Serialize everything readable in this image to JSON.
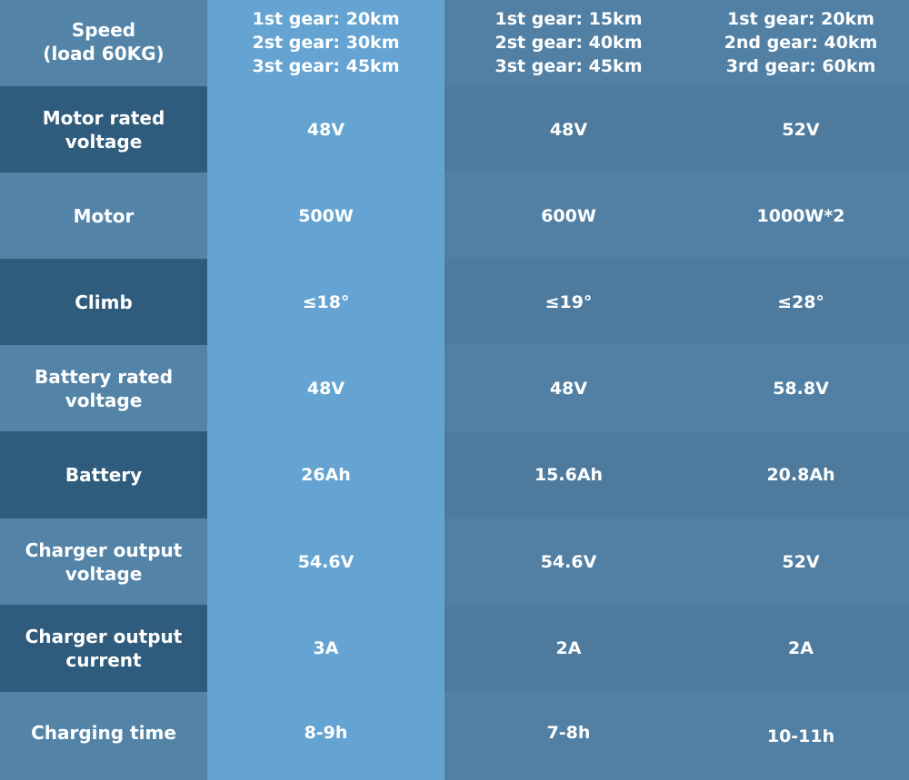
{
  "rows": [
    {
      "label": "Speed\n(load 60KG)",
      "values": [
        "1st gear: 20km\n2st gear: 30km\n3st gear: 45km",
        "1st gear: 15km\n2st gear: 40km\n3st gear: 45km",
        "1st gear: 20km\n2nd gear: 40km\n3rd gear: 60km"
      ]
    },
    {
      "label": "Motor rated\nvoltage",
      "values": [
        "48V",
        "48V",
        "52V"
      ]
    },
    {
      "label": "Motor",
      "values": [
        "500W",
        "600W",
        "1000W*2"
      ]
    },
    {
      "label": "Climb",
      "values": [
        "≤18°",
        "≤19°",
        "≤28°"
      ]
    },
    {
      "label": "Battery rated\nvoltage",
      "values": [
        "48V",
        "48V",
        "58.8V"
      ]
    },
    {
      "label": "Battery",
      "values": [
        "26Ah",
        "15.6Ah",
        "20.8Ah"
      ]
    },
    {
      "label": "Charger output\nvoltage",
      "values": [
        "54.6V",
        "54.6V",
        "52V"
      ]
    },
    {
      "label": "Charger output\ncurrent",
      "values": [
        "3A",
        "2A",
        "2A"
      ]
    },
    {
      "label": "Charging time",
      "values": [
        "8-9h",
        "7-8h",
        "10-11h"
      ]
    }
  ]
}
